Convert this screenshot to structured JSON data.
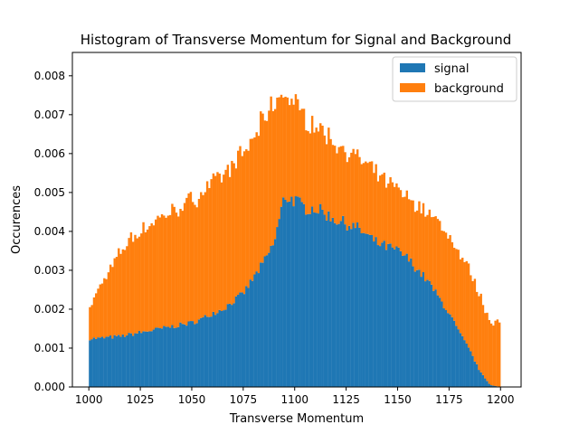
{
  "chart_data": {
    "type": "bar",
    "subtype": "stacked-histogram",
    "title": "Histogram of Transverse Momentum for Signal and Background",
    "xlabel": "Transverse Momentum",
    "ylabel": "Occurences",
    "xlim": [
      992,
      1210
    ],
    "ylim": [
      0,
      0.0086
    ],
    "x_ticks": [
      "1000",
      "1025",
      "1050",
      "1075",
      "1100",
      "1125",
      "1150",
      "1175",
      "1200"
    ],
    "y_ticks": [
      "0.000",
      "0.001",
      "0.002",
      "0.003",
      "0.004",
      "0.005",
      "0.006",
      "0.007",
      "0.008"
    ],
    "legend_position": "top-right",
    "grid": false,
    "bin_width": 1,
    "x": [
      1000,
      1005,
      1010,
      1015,
      1020,
      1025,
      1030,
      1035,
      1040,
      1045,
      1050,
      1055,
      1060,
      1065,
      1070,
      1075,
      1080,
      1085,
      1090,
      1095,
      1100,
      1105,
      1110,
      1115,
      1120,
      1125,
      1130,
      1135,
      1140,
      1145,
      1150,
      1155,
      1160,
      1165,
      1170,
      1175,
      1180,
      1185,
      1190,
      1195,
      1200
    ],
    "series": [
      {
        "name": "signal",
        "color": "#1f77b4",
        "values": [
          0.00125,
          0.00125,
          0.00128,
          0.0013,
          0.00135,
          0.0014,
          0.00145,
          0.0015,
          0.00155,
          0.0016,
          0.00165,
          0.00175,
          0.0019,
          0.002,
          0.0022,
          0.0024,
          0.0028,
          0.0032,
          0.0037,
          0.0049,
          0.0048,
          0.0046,
          0.0046,
          0.00445,
          0.0043,
          0.0042,
          0.0041,
          0.0039,
          0.0037,
          0.0036,
          0.0035,
          0.0033,
          0.003,
          0.0027,
          0.0023,
          0.0019,
          0.0014,
          0.00095,
          0.0004,
          5e-05,
          0.0
        ]
      },
      {
        "name": "background",
        "color": "#ff7f0e",
        "values": [
          0.00075,
          0.0013,
          0.0017,
          0.00215,
          0.00245,
          0.0026,
          0.00275,
          0.00285,
          0.00295,
          0.00305,
          0.00315,
          0.00325,
          0.00335,
          0.00345,
          0.0035,
          0.00355,
          0.0036,
          0.00365,
          0.0036,
          0.00265,
          0.0025,
          0.0023,
          0.00215,
          0.00205,
          0.00195,
          0.0019,
          0.0018,
          0.0018,
          0.00175,
          0.00165,
          0.0016,
          0.00155,
          0.00165,
          0.0018,
          0.0019,
          0.002,
          0.002,
          0.00205,
          0.00195,
          0.00165,
          0.00165
        ]
      }
    ]
  }
}
